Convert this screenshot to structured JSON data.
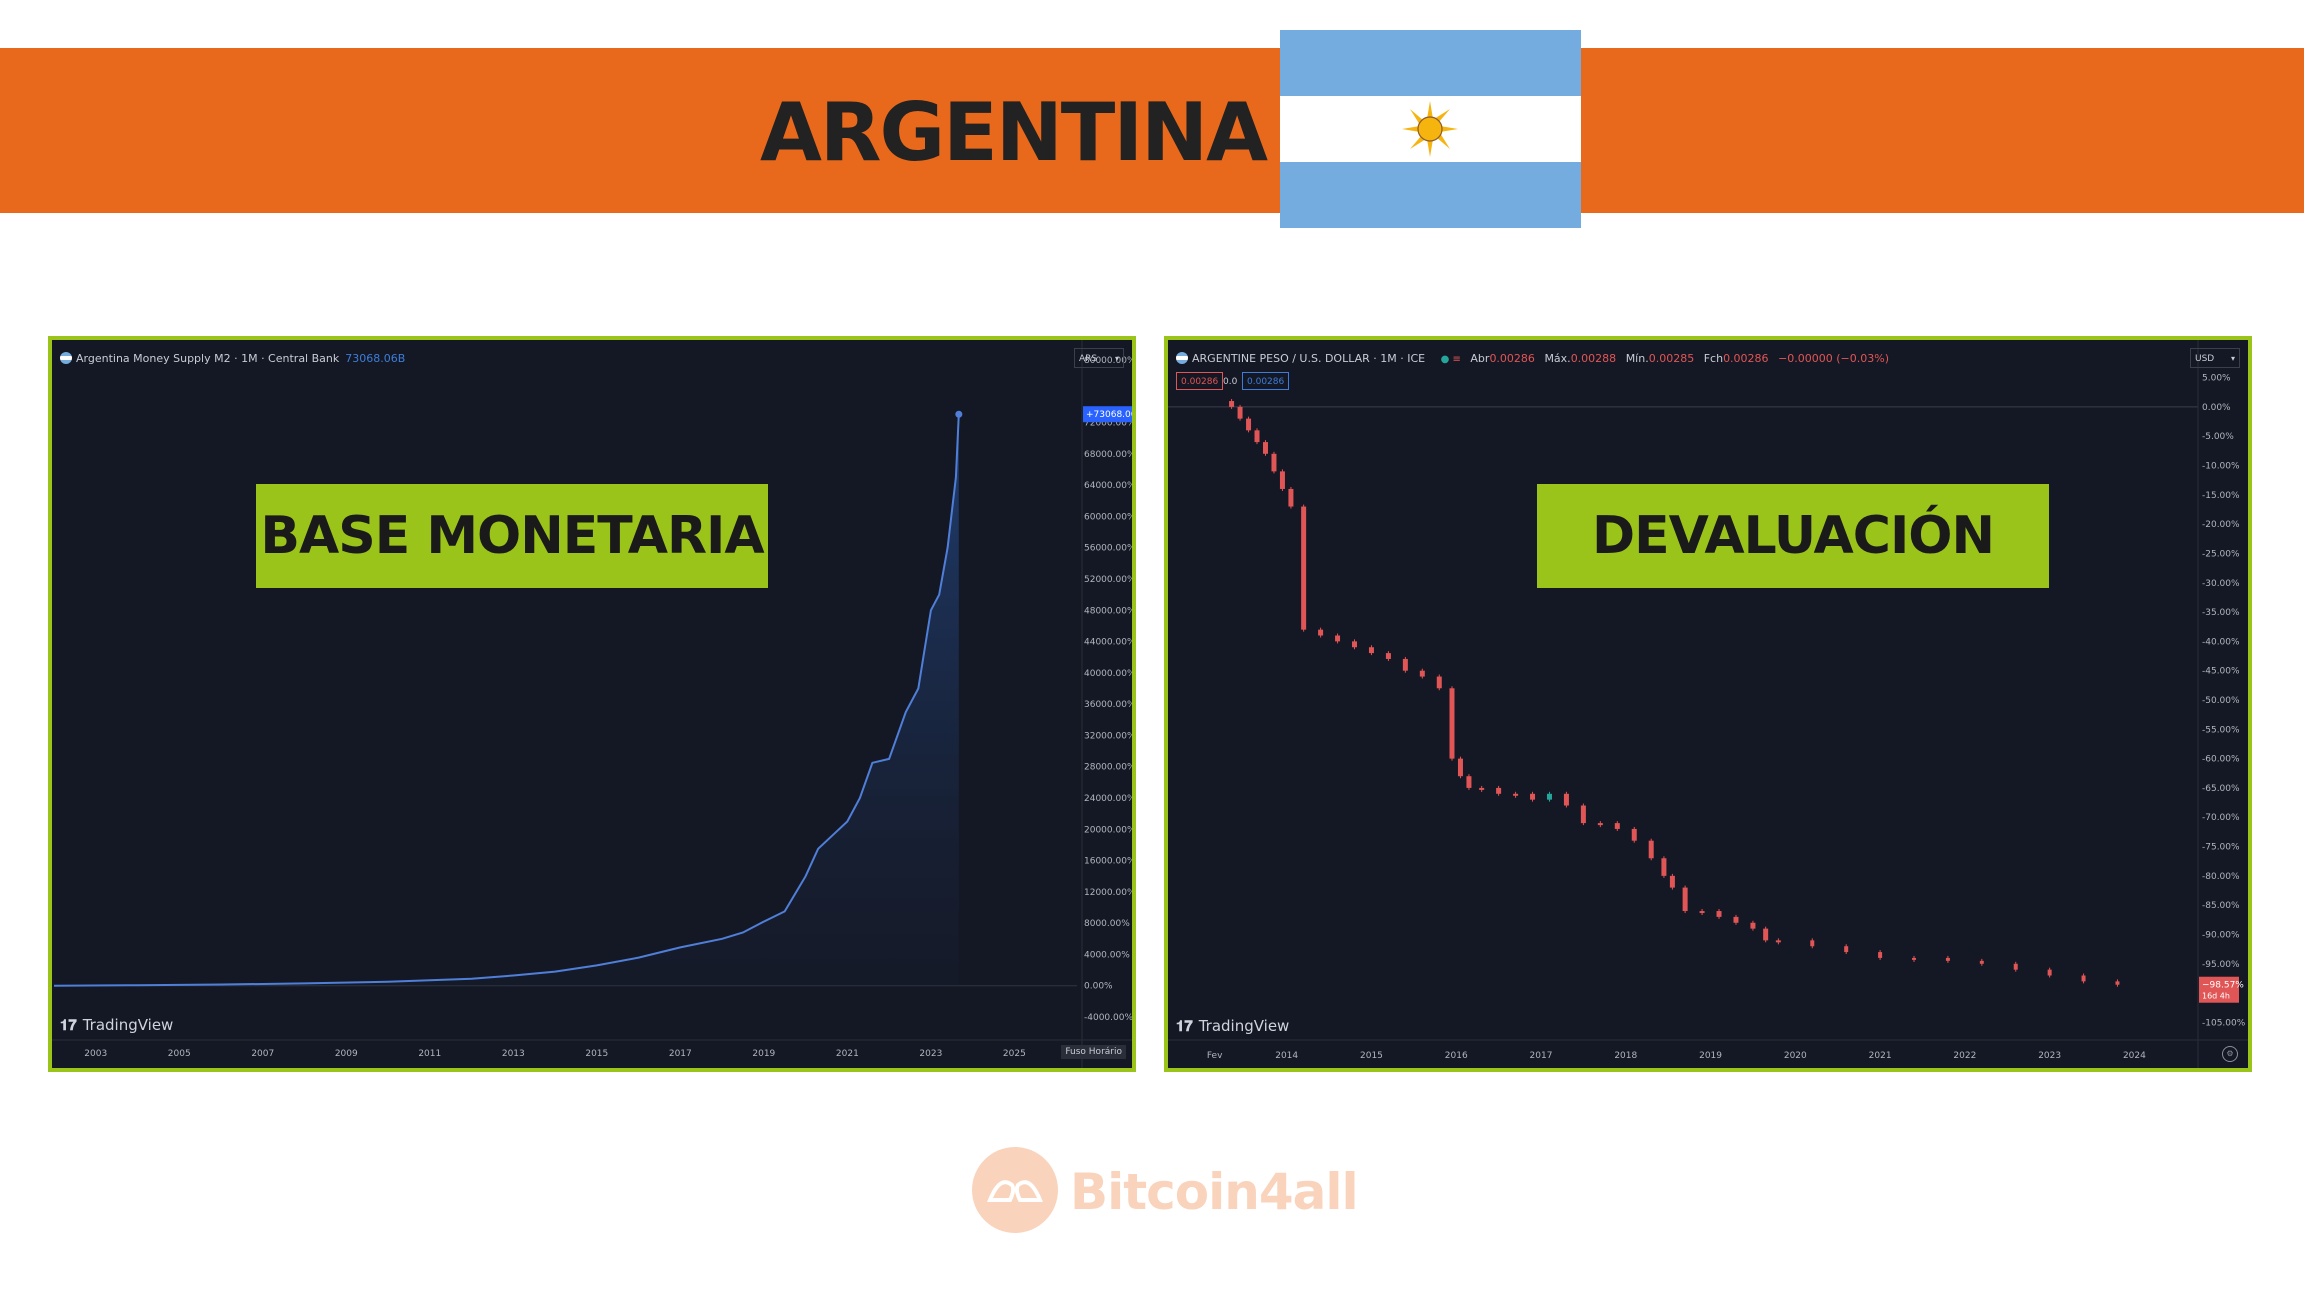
{
  "banner": {
    "title": "ARGENTINA",
    "color": "#e8681c"
  },
  "flag": {
    "icon": "argentina-flag-icon",
    "colors": [
      "#74acdf",
      "#ffffff",
      "#f6b40e"
    ]
  },
  "watermark": {
    "icon": "hands-logo-icon",
    "text": "Bitcoin4all"
  },
  "labels": {
    "left": "BASE MONETARIA",
    "right": "DEVALUACIÓN"
  },
  "left_panel": {
    "header_title": "Argentina Money Supply M2 · 1M · Central Bank",
    "header_value": "73068.06B",
    "currency": "ARS",
    "price_tag": "+73068.06%",
    "logo_text": "TradingView",
    "timezone_btn": "Fuso Horário"
  },
  "right_panel": {
    "header_title": "ARGENTINE PESO / U.S. DOLLAR · 1M · ICE",
    "ohlc": [
      {
        "label": "Abr",
        "value": "0.00286"
      },
      {
        "label": "Máx.",
        "value": "0.00288"
      },
      {
        "label": "Mín.",
        "value": "0.00285"
      },
      {
        "label": "Fch",
        "value": "0.00286"
      }
    ],
    "change": "−0.00000 (−0.03%)",
    "sell_price": "0.00286",
    "spread": "0.0",
    "buy_price": "0.00286",
    "currency": "USD",
    "price_tag": "−98.57%",
    "price_tag_sub": "16d 4h",
    "logo_text": "TradingView"
  },
  "chart_data": [
    {
      "type": "area",
      "title": "Argentina Money Supply M2 · 1M · Central Bank",
      "x": [
        2002,
        2004,
        2006,
        2008,
        2010,
        2012,
        2013,
        2014,
        2015,
        2016,
        2017,
        2018,
        2018.5,
        2019,
        2019.5,
        2020,
        2020.3,
        2020.7,
        2021,
        2021.3,
        2021.6,
        2022,
        2022.4,
        2022.7,
        2023,
        2023.2,
        2023.4,
        2023.6,
        2023.67
      ],
      "y": [
        0,
        60,
        150,
        300,
        500,
        900,
        1300,
        1800,
        2600,
        3600,
        4900,
        6000,
        6800,
        8200,
        9500,
        14000,
        17500,
        19500,
        21000,
        24000,
        28500,
        29000,
        35000,
        38000,
        48000,
        50000,
        56000,
        65000,
        73068.06
      ],
      "x_ticks": [
        "2003",
        "2005",
        "2007",
        "2009",
        "2011",
        "2013",
        "2015",
        "2017",
        "2019",
        "2021",
        "2023",
        "2025"
      ],
      "y_ticks": [
        "-4000.00%",
        "0.00%",
        "4000.00%",
        "8000.00%",
        "12000.00%",
        "16000.00%",
        "20000.00%",
        "24000.00%",
        "28000.00%",
        "32000.00%",
        "36000.00%",
        "40000.00%",
        "44000.00%",
        "48000.00%",
        "52000.00%",
        "56000.00%",
        "60000.00%",
        "64000.00%",
        "68000.00%",
        "72000.00%",
        "80000.00%"
      ],
      "ylim": [
        -4000,
        80000
      ],
      "xlim": [
        2002,
        2026.5
      ],
      "color": "#4f7fd8"
    },
    {
      "type": "candlestick",
      "title": "ARGENTINE PESO / U.S. DOLLAR · 1M · ICE",
      "x": [
        2013.35,
        2013.45,
        2013.55,
        2013.65,
        2013.75,
        2013.85,
        2013.95,
        2014.05,
        2014.2,
        2014.4,
        2014.6,
        2014.8,
        2015.0,
        2015.2,
        2015.4,
        2015.6,
        2015.8,
        2015.95,
        2016.05,
        2016.15,
        2016.3,
        2016.5,
        2016.7,
        2016.9,
        2017.1,
        2017.3,
        2017.5,
        2017.7,
        2017.9,
        2018.1,
        2018.3,
        2018.45,
        2018.55,
        2018.7,
        2018.9,
        2019.1,
        2019.3,
        2019.5,
        2019.65,
        2019.8,
        2020.2,
        2020.6,
        2021.0,
        2021.4,
        2021.8,
        2022.2,
        2022.6,
        2023.0,
        2023.4,
        2023.8
      ],
      "y": [
        0,
        -2,
        -4,
        -6,
        -8,
        -11,
        -14,
        -17,
        -38,
        -39,
        -40,
        -41,
        -42,
        -43,
        -45,
        -46,
        -48,
        -60,
        -63,
        -65,
        -65,
        -66,
        -66,
        -67,
        -66,
        -68,
        -71,
        -71,
        -72,
        -74,
        -77,
        -80,
        -82,
        -86,
        -86,
        -87,
        -88,
        -89,
        -91,
        -91,
        -92,
        -93,
        -94,
        -94,
        -94.5,
        -95,
        -96,
        -97,
        -98,
        -98.57
      ],
      "x_ticks": [
        "Fev",
        "2014",
        "2015",
        "2016",
        "2017",
        "2018",
        "2019",
        "2020",
        "2021",
        "2022",
        "2023",
        "2024"
      ],
      "y_ticks": [
        "5.00%",
        "0.00%",
        "-5.00%",
        "-10.00%",
        "-15.00%",
        "-20.00%",
        "-25.00%",
        "-30.00%",
        "-35.00%",
        "-40.00%",
        "-45.00%",
        "-50.00%",
        "-55.00%",
        "-60.00%",
        "-65.00%",
        "-70.00%",
        "-75.00%",
        "-80.00%",
        "-85.00%",
        "-90.00%",
        "-95.00%",
        "-105.00%"
      ],
      "ylim": [
        -108,
        8
      ],
      "xlim": [
        2012.6,
        2024.75
      ],
      "down_color": "#e05555",
      "up_color": "#26a69a"
    }
  ]
}
